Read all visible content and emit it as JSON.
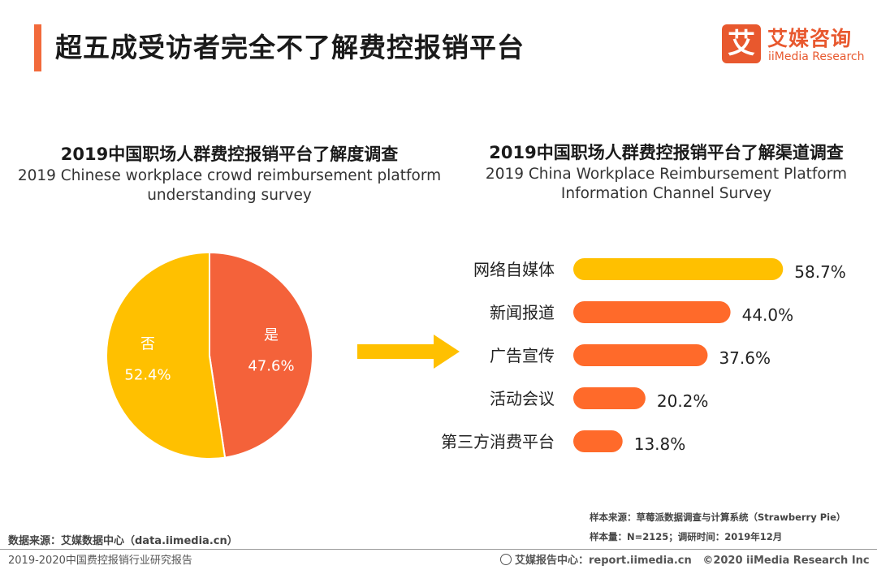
{
  "header": {
    "title": "超五成受访者完全不了解费控报销平台"
  },
  "logo": {
    "mark": "艾",
    "name_cn": "艾媒咨询",
    "name_en": "iiMedia Research"
  },
  "colors": {
    "accent": "#f26a3b",
    "yellow": "#ffc000",
    "orange": "#ff6a2a",
    "pie_orange": "#f4623a",
    "arrow": "#ffc000"
  },
  "chart_data": [
    {
      "type": "pie",
      "title": "2019中国职场人群费控报销平台了解度调查",
      "subtitle": "2019 Chinese workplace crowd reimbursement platform understanding survey",
      "slices": [
        {
          "label": "是",
          "value": 47.6,
          "value_label": "47.6%",
          "color": "#f4623a"
        },
        {
          "label": "否",
          "value": 52.4,
          "value_label": "52.4%",
          "color": "#ffc000"
        }
      ]
    },
    {
      "type": "bar",
      "orientation": "horizontal",
      "title": "2019中国职场人群费控报销平台了解渠道调查",
      "subtitle": "2019 China Workplace Reimbursement Platform Information Channel Survey",
      "categories": [
        "网络自媒体",
        "新闻报道",
        "广告宣传",
        "活动会议",
        "第三方消费平台"
      ],
      "values": [
        58.7,
        44.0,
        37.6,
        20.2,
        13.8
      ],
      "value_labels": [
        "58.7%",
        "44.0%",
        "37.6%",
        "20.2%",
        "13.8%"
      ],
      "colors": [
        "#ffc000",
        "#ff6a2a",
        "#ff6a2a",
        "#ff6a2a",
        "#ff6a2a"
      ]
    }
  ],
  "footer": {
    "source": "数据来源：艾媒数据中心（data.iimedia.cn）",
    "report": "2019-2020中国费控报销行业研究报告",
    "sample_source": "样本来源：草莓派数据调查与计算系统（Strawberry Pie）",
    "sample_size": "样本量：N=2125；调研时间：2019年12月",
    "report_center": "艾媒报告中心：report.iimedia.cn",
    "copyright": "©2020  iiMedia Research  Inc"
  }
}
